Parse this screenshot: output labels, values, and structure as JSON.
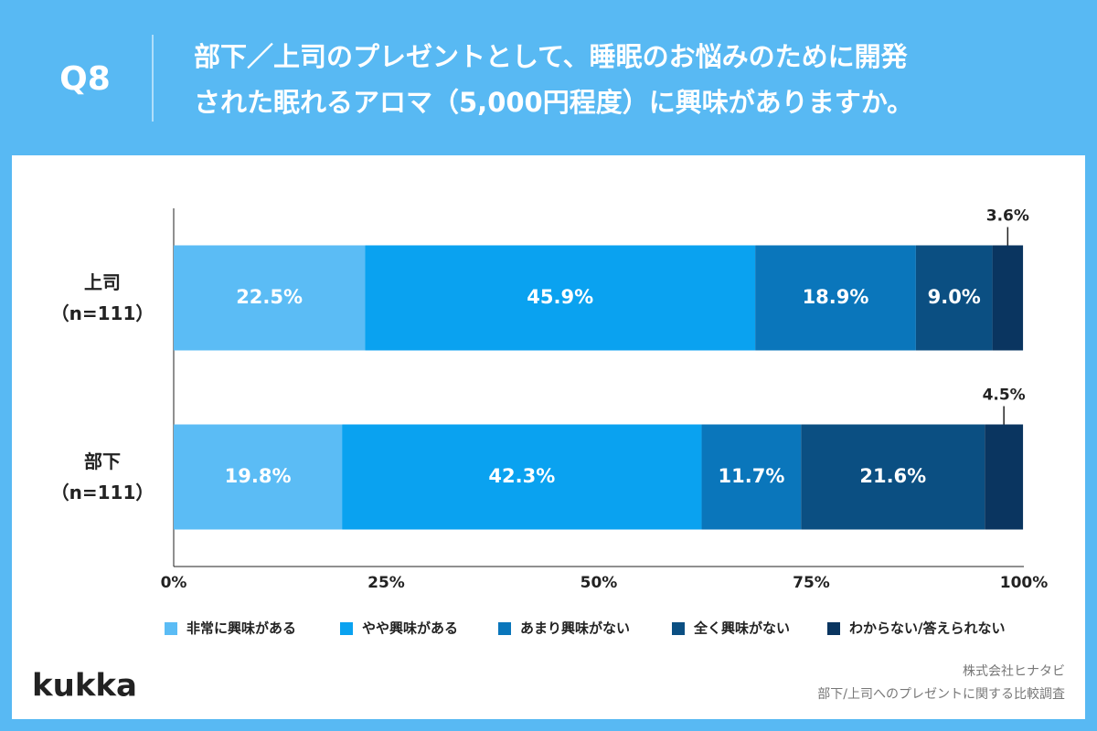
{
  "header": {
    "label": "Q8",
    "title": "部下／上司のプレゼントとして、睡眠のお悩みのために開発\nされた眠れるアロマ（5,000円程度）に興味がありますか。"
  },
  "chart_data": {
    "type": "stacked-bar-horizontal",
    "categories": [
      "上司\n（n=111）",
      "部下\n（n=111）"
    ],
    "series": [
      {
        "name": "非常に興味がある",
        "color": "#5bbcf5",
        "values": [
          22.5,
          19.8
        ],
        "value_labels": [
          "22.5%",
          "19.8%"
        ]
      },
      {
        "name": "やや興味がある",
        "color": "#0aa2f0",
        "values": [
          45.9,
          42.3
        ],
        "value_labels": [
          "45.9%",
          "42.3%"
        ]
      },
      {
        "name": "あまり興味がない",
        "color": "#0a76bb",
        "values": [
          18.9,
          11.7
        ],
        "value_labels": [
          "18.9%",
          "11.7%"
        ]
      },
      {
        "name": "全く興味がない",
        "color": "#0b4f82",
        "values": [
          9.0,
          21.6
        ],
        "value_labels": [
          "9.0%",
          "21.6%"
        ]
      },
      {
        "name": "わからない/答えられない",
        "color": "#0a3560",
        "values": [
          3.6,
          4.5
        ],
        "value_labels": [
          "3.6%",
          "4.5%"
        ]
      }
    ],
    "xlim": [
      0,
      100
    ],
    "xticks": [
      {
        "value": 0,
        "label": "0%"
      },
      {
        "value": 25,
        "label": "25%"
      },
      {
        "value": 50,
        "label": "50%"
      },
      {
        "value": 75,
        "label": "75%"
      },
      {
        "value": 100,
        "label": "100%"
      }
    ],
    "grid": false,
    "legend": "bottom"
  },
  "footer": {
    "logo": "kukka",
    "source": [
      "株式会社ヒナタビ",
      "部下/上司へのプレゼントに関する比較調査"
    ]
  }
}
